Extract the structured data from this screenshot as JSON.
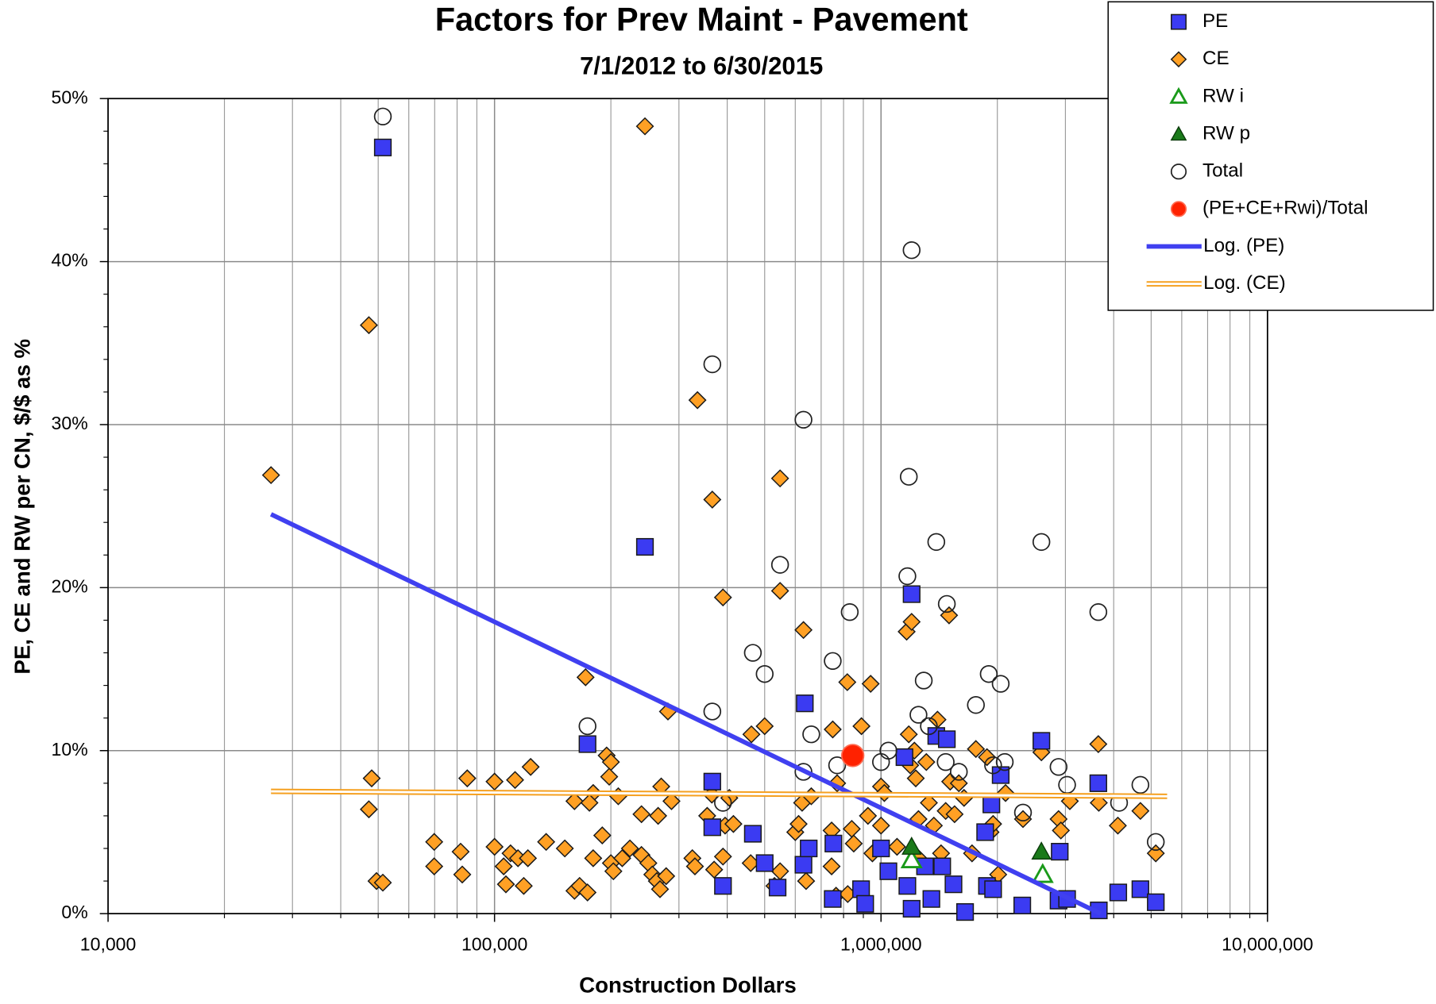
{
  "chart_data": {
    "type": "scatter",
    "title": "Factors for Prev Maint - Pavement",
    "subtitle": "7/1/2012 to 6/30/2015",
    "x_label": "Construction Dollars",
    "y_label": "PE, CE and RW per CN, $/$ as %",
    "xscale": "log",
    "xlim": [
      10000,
      10000000
    ],
    "ylim": [
      0,
      50
    ],
    "xticks": [
      {
        "value": 10000,
        "label": "10,000"
      },
      {
        "value": 100000,
        "label": "100,000"
      },
      {
        "value": 1000000,
        "label": "1,000,000"
      },
      {
        "value": 10000000,
        "label": "10,000,000"
      }
    ],
    "xminorticks": [
      20000,
      30000,
      40000,
      50000,
      60000,
      70000,
      80000,
      90000,
      200000,
      300000,
      400000,
      500000,
      600000,
      700000,
      800000,
      900000,
      2000000,
      3000000,
      4000000,
      5000000,
      6000000,
      7000000,
      8000000,
      9000000
    ],
    "yticks": [
      {
        "value": 0,
        "label": "0%"
      },
      {
        "value": 10,
        "label": "10%"
      },
      {
        "value": 20,
        "label": "20%"
      },
      {
        "value": 30,
        "label": "30%"
      },
      {
        "value": 40,
        "label": "40%"
      },
      {
        "value": 50,
        "label": "50%"
      }
    ],
    "yminorticks": [
      2,
      4,
      6,
      8,
      12,
      14,
      16,
      18,
      22,
      24,
      26,
      28,
      32,
      34,
      36,
      38,
      42,
      44,
      46,
      48
    ],
    "grid": true,
    "legend": "top-right",
    "series": [
      {
        "name": "PE",
        "color": "#3b3bf2",
        "marker": "square",
        "x": [
          51400,
          245000,
          174000,
          366000,
          366000,
          390000,
          466000,
          500000,
          540000,
          635000,
          630000,
          650000,
          753000,
          750000,
          888000,
          910000,
          1000000,
          1045000,
          1150000,
          1200000,
          1170000,
          1200000,
          1300000,
          1350000,
          1390000,
          1480000,
          1440000,
          1540000,
          1650000,
          1880000,
          1950000,
          2040000,
          1930000,
          2320000,
          2600000,
          2900000,
          2880000,
          3030000,
          3650000,
          3660000,
          4110000,
          4690000,
          5140000,
          1860000
        ],
        "values": [
          47.0,
          22.5,
          10.4,
          8.1,
          5.3,
          1.7,
          4.9,
          3.1,
          1.6,
          12.9,
          3.0,
          4.0,
          4.3,
          0.9,
          1.5,
          0.6,
          4.0,
          2.6,
          9.6,
          19.6,
          1.7,
          0.3,
          2.9,
          0.9,
          10.9,
          10.7,
          2.9,
          1.8,
          0.1,
          1.7,
          1.5,
          8.5,
          6.7,
          0.5,
          10.6,
          3.8,
          0.8,
          0.9,
          8.0,
          0.2,
          1.3,
          1.5,
          0.7,
          5.0
        ]
      },
      {
        "name": "CE",
        "color": "#ffa024",
        "marker": "diamond",
        "x": [
          26400,
          47300,
          48100,
          47300,
          49500,
          51400,
          69800,
          69800,
          81700,
          82500,
          85000,
          100000,
          100000,
          105600,
          107000,
          110000,
          113000,
          115000,
          119000,
          122000,
          124000,
          136000,
          152000,
          161000,
          161000,
          166000,
          174000,
          172000,
          180000,
          176000,
          180000,
          190000,
          195000,
          200000,
          198000,
          200000,
          203000,
          209000,
          214000,
          224000,
          240000,
          240000,
          245000,
          250000,
          256000,
          263000,
          268000,
          265000,
          270000,
          278000,
          281000,
          287000,
          325000,
          330000,
          335000,
          355000,
          365000,
          366000,
          370000,
          390000,
          390000,
          395000,
          405000,
          415000,
          460000,
          462000,
          500000,
          530000,
          548000,
          548000,
          548000,
          600000,
          612000,
          625000,
          630000,
          640000,
          660000,
          745000,
          745000,
          750000,
          765000,
          770000,
          820000,
          818000,
          840000,
          850000,
          890000,
          925000,
          940000,
          950000,
          1000000,
          1020000,
          1000000,
          1100000,
          1165000,
          1200000,
          1180000,
          1190000,
          1220000,
          1230000,
          1250000,
          1250000,
          1310000,
          1330000,
          1370000,
          1400000,
          1430000,
          1470000,
          1500000,
          1510000,
          1550000,
          1590000,
          1640000,
          1720000,
          1760000,
          1880000,
          1920000,
          1950000,
          2010000,
          2100000,
          2330000,
          2600000,
          2880000,
          2920000,
          3080000,
          3650000,
          3660000,
          4100000,
          4690000,
          5140000
        ],
        "values": [
          26.9,
          36.1,
          8.3,
          6.4,
          2.0,
          1.9,
          4.4,
          2.9,
          3.8,
          2.4,
          8.3,
          4.1,
          8.1,
          2.9,
          1.8,
          3.7,
          8.2,
          3.4,
          1.7,
          3.4,
          9.0,
          4.4,
          4.0,
          6.9,
          1.4,
          1.7,
          1.3,
          14.5,
          7.4,
          6.8,
          3.4,
          4.8,
          9.7,
          9.3,
          8.4,
          3.1,
          2.6,
          7.2,
          3.4,
          4.0,
          6.1,
          3.6,
          48.3,
          3.1,
          2.4,
          2.0,
          1.5,
          6.0,
          7.8,
          2.3,
          12.4,
          6.9,
          3.4,
          2.9,
          31.5,
          6.0,
          7.3,
          25.4,
          2.7,
          19.4,
          3.5,
          5.4,
          7.1,
          5.5,
          3.1,
          11.0,
          11.5,
          1.7,
          26.7,
          19.8,
          2.6,
          5.0,
          5.5,
          6.8,
          17.4,
          2.0,
          7.2,
          5.1,
          2.9,
          11.3,
          1.1,
          8.0,
          1.2,
          14.2,
          5.2,
          4.3,
          11.5,
          6.0,
          14.1,
          3.7,
          7.8,
          7.4,
          5.4,
          4.1,
          17.3,
          17.9,
          11.0,
          9.1,
          10.0,
          8.3,
          5.8,
          3.4,
          9.3,
          6.8,
          5.4,
          11.9,
          3.7,
          6.3,
          18.3,
          8.1,
          6.1,
          8.0,
          7.1,
          3.7,
          10.1,
          9.6,
          5.0,
          5.5,
          2.4,
          7.4,
          5.8,
          9.9,
          5.8,
          5.1,
          6.9,
          10.4,
          6.8,
          5.4,
          6.3,
          3.7
        ]
      },
      {
        "name": "RW i",
        "color": "#1a9a1a",
        "marker": "triangle-open",
        "x": [
          1200000,
          2620000
        ],
        "values": [
          3.3,
          2.4
        ]
      },
      {
        "name": "RW p",
        "color": "#1a7a1a",
        "marker": "triangle",
        "x": [
          1200000,
          2600000
        ],
        "values": [
          4.1,
          3.8
        ]
      },
      {
        "name": "Total",
        "color": "#222222",
        "marker": "circle-open",
        "x": [
          51400,
          174000,
          366000,
          366000,
          390000,
          466000,
          500000,
          548000,
          630000,
          630000,
          660000,
          750000,
          770000,
          830000,
          1000000,
          1045000,
          1170000,
          1180000,
          1200000,
          1250000,
          1290000,
          1330000,
          1390000,
          1470000,
          1480000,
          1590000,
          1760000,
          1900000,
          1950000,
          2040000,
          2090000,
          2330000,
          2600000,
          2880000,
          3030000,
          3650000,
          4130000,
          4690000,
          5140000
        ],
        "values": [
          48.9,
          11.5,
          33.7,
          12.4,
          6.8,
          16.0,
          14.7,
          21.4,
          30.3,
          8.7,
          11.0,
          15.5,
          9.1,
          18.5,
          9.3,
          10.0,
          20.7,
          26.8,
          40.7,
          12.2,
          14.3,
          11.5,
          22.8,
          9.3,
          19.0,
          8.7,
          12.8,
          14.7,
          9.1,
          14.1,
          9.3,
          6.2,
          22.8,
          9.0,
          7.9,
          18.5,
          6.8,
          7.9,
          4.4
        ]
      },
      {
        "name": "(PE+CE+Rwi)/Total",
        "color": "#ff2200",
        "marker": "circle",
        "x": [
          845000
        ],
        "values": [
          9.7
        ]
      },
      {
        "name": "Log. (PE)",
        "color": "#4040f0",
        "marker": "line",
        "x": [
          26400,
          3700000
        ],
        "values": [
          24.5,
          0
        ]
      },
      {
        "name": "Log. (CE)",
        "color": "#f5a020",
        "marker": "double-line",
        "x": [
          26400,
          5500000
        ],
        "values": [
          7.5,
          7.2
        ]
      }
    ]
  }
}
